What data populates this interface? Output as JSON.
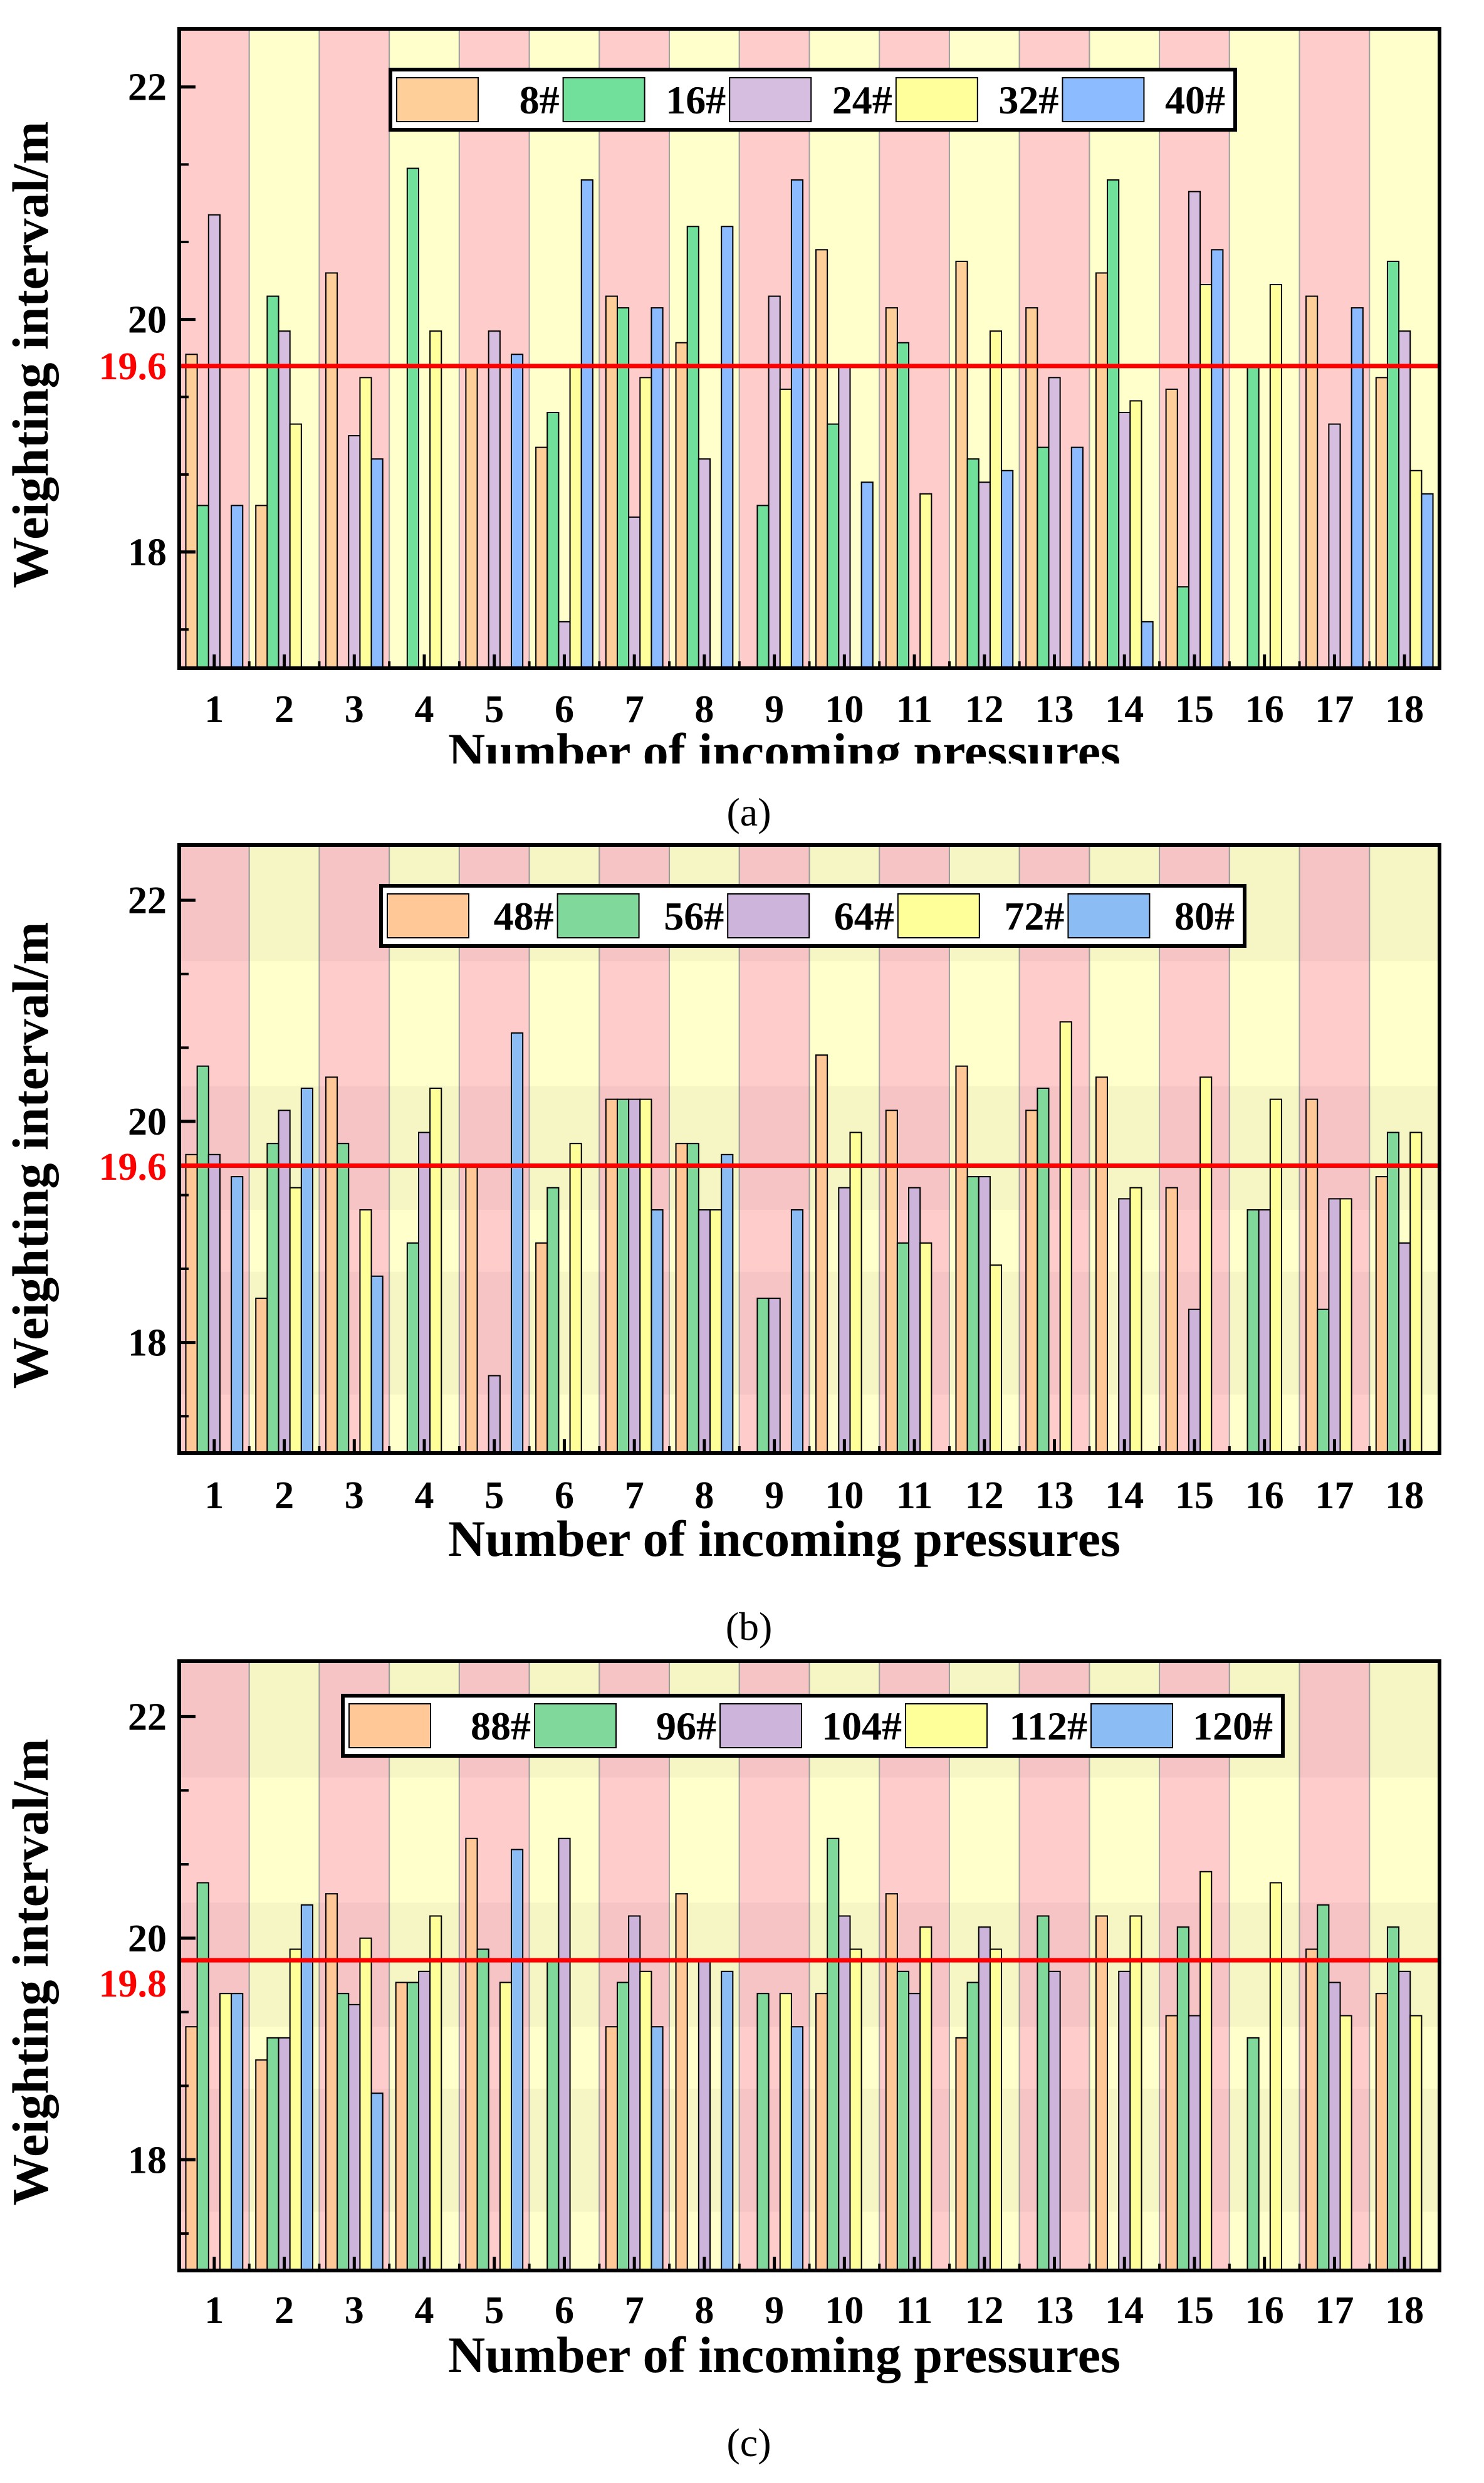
{
  "chart_data": [
    {
      "panel_label": "(a)",
      "type": "bar",
      "xlabel": "Number of incoming pressures",
      "ylabel": "Weighting interval/m",
      "categories": [
        "1",
        "2",
        "3",
        "4",
        "5",
        "6",
        "7",
        "8",
        "9",
        "10",
        "11",
        "12",
        "13",
        "14",
        "15",
        "16",
        "17",
        "18"
      ],
      "ylim": [
        17,
        22.5
      ],
      "yticks": [
        18,
        20,
        22
      ],
      "grid": false,
      "legend_position": "top-center",
      "reference_line": {
        "value": 19.6,
        "label": "19.6",
        "color": "#ff0000"
      },
      "background_colors": [
        "#ffcccc",
        "#ffffcc"
      ],
      "series": [
        {
          "name": "8#",
          "color": "#ffcf99",
          "values": [
            19.7,
            18.4,
            20.4,
            null,
            19.6,
            18.9,
            20.2,
            19.8,
            null,
            20.6,
            20.1,
            20.5,
            20.1,
            20.4,
            19.4,
            null,
            20.2,
            19.5
          ]
        },
        {
          "name": "16#",
          "color": "#70e09a",
          "values": [
            18.4,
            20.2,
            null,
            21.3,
            null,
            19.2,
            20.1,
            20.8,
            18.4,
            19.1,
            19.8,
            18.8,
            18.9,
            21.2,
            17.7,
            19.6,
            null,
            20.5
          ]
        },
        {
          "name": "24#",
          "color": "#d6bee0",
          "values": [
            20.9,
            19.9,
            19.0,
            null,
            19.9,
            17.4,
            18.3,
            18.8,
            20.2,
            19.6,
            null,
            18.6,
            19.5,
            19.2,
            21.1,
            null,
            19.1,
            19.9
          ]
        },
        {
          "name": "32#",
          "color": "#ffff9c",
          "values": [
            null,
            19.1,
            19.5,
            19.9,
            null,
            19.6,
            19.5,
            null,
            19.4,
            null,
            18.5,
            19.9,
            null,
            19.3,
            20.3,
            20.3,
            null,
            18.7
          ]
        },
        {
          "name": "40#",
          "color": "#8cbcff",
          "values": [
            18.4,
            null,
            18.8,
            null,
            19.7,
            21.2,
            20.1,
            20.8,
            21.2,
            18.6,
            null,
            18.7,
            18.9,
            17.4,
            20.6,
            null,
            20.1,
            18.5
          ]
        }
      ]
    },
    {
      "panel_label": "(b)",
      "type": "bar",
      "xlabel": "Number of incoming pressures",
      "ylabel": "Weighting interval/m",
      "categories": [
        "1",
        "2",
        "3",
        "4",
        "5",
        "6",
        "7",
        "8",
        "9",
        "10",
        "11",
        "12",
        "13",
        "14",
        "15",
        "16",
        "17",
        "18"
      ],
      "ylim": [
        17,
        22.5
      ],
      "yticks": [
        18,
        20,
        22
      ],
      "grid": false,
      "legend_position": "top-center",
      "reference_line": {
        "value": 19.6,
        "label": "19.6",
        "color": "#ff0000"
      },
      "background_colors": [
        "#ffcccc",
        "#ffffcc"
      ],
      "series": [
        {
          "name": "48#",
          "color": "#ffc896",
          "values": [
            19.7,
            18.4,
            20.4,
            null,
            19.6,
            18.9,
            20.2,
            19.8,
            null,
            20.6,
            20.1,
            20.5,
            20.1,
            20.4,
            19.4,
            null,
            20.2,
            19.5
          ]
        },
        {
          "name": "56#",
          "color": "#80d89a",
          "values": [
            20.5,
            19.8,
            19.8,
            18.9,
            null,
            19.4,
            20.2,
            19.8,
            18.4,
            null,
            18.9,
            19.5,
            20.3,
            null,
            null,
            19.2,
            18.3,
            19.9
          ]
        },
        {
          "name": "64#",
          "color": "#ccb4da",
          "values": [
            19.7,
            20.1,
            null,
            19.9,
            17.7,
            null,
            20.2,
            19.2,
            18.4,
            19.4,
            19.4,
            19.5,
            null,
            19.3,
            18.3,
            19.2,
            19.3,
            18.9
          ]
        },
        {
          "name": "72#",
          "color": "#ffff99",
          "values": [
            null,
            19.4,
            19.2,
            20.3,
            null,
            19.8,
            20.2,
            19.2,
            null,
            19.9,
            18.9,
            18.7,
            20.9,
            19.4,
            20.4,
            20.2,
            19.3,
            19.9
          ]
        },
        {
          "name": "80#",
          "color": "#8cbcf4",
          "values": [
            19.5,
            20.3,
            18.6,
            null,
            20.8,
            null,
            19.2,
            19.7,
            19.2,
            null,
            null,
            null,
            null,
            null,
            null,
            null,
            null,
            null
          ]
        }
      ]
    },
    {
      "panel_label": "(c)",
      "type": "bar",
      "xlabel": "Number of incoming pressures",
      "ylabel": "Weighting interval/m",
      "categories": [
        "1",
        "2",
        "3",
        "4",
        "5",
        "6",
        "7",
        "8",
        "9",
        "10",
        "11",
        "12",
        "13",
        "14",
        "15",
        "16",
        "17",
        "18"
      ],
      "ylim": [
        17,
        22.5
      ],
      "yticks": [
        18,
        20,
        22
      ],
      "grid": false,
      "legend_position": "top-center",
      "reference_line": {
        "value": 19.8,
        "label": "19.8",
        "color": "#ff0000"
      },
      "background_colors": [
        "#ffcccc",
        "#ffffcc"
      ],
      "series": [
        {
          "name": "88#",
          "color": "#ffc896",
          "values": [
            19.2,
            18.9,
            20.4,
            19.6,
            20.9,
            null,
            19.2,
            20.4,
            null,
            19.5,
            20.4,
            19.1,
            null,
            20.2,
            19.3,
            null,
            19.9,
            19.5
          ]
        },
        {
          "name": "96#",
          "color": "#80d89a",
          "values": [
            20.5,
            19.1,
            19.5,
            19.6,
            19.9,
            19.8,
            19.6,
            null,
            19.5,
            20.9,
            19.7,
            19.6,
            20.2,
            null,
            20.1,
            19.1,
            20.3,
            20.1
          ]
        },
        {
          "name": "104#",
          "color": "#ccb4da",
          "values": [
            null,
            19.1,
            19.4,
            19.7,
            null,
            20.9,
            20.2,
            19.8,
            null,
            20.2,
            19.5,
            20.1,
            19.7,
            19.7,
            19.3,
            null,
            19.6,
            19.7
          ]
        },
        {
          "name": "112#",
          "color": "#ffff99",
          "values": [
            19.5,
            19.9,
            20.0,
            20.2,
            19.6,
            null,
            19.7,
            null,
            19.5,
            19.9,
            20.1,
            19.9,
            null,
            20.2,
            20.6,
            20.5,
            19.3,
            19.3
          ]
        },
        {
          "name": "120#",
          "color": "#8cbcf4",
          "values": [
            19.5,
            20.3,
            18.6,
            null,
            20.8,
            null,
            19.2,
            19.7,
            19.2,
            null,
            null,
            null,
            null,
            null,
            null,
            null,
            null,
            null
          ]
        }
      ]
    }
  ]
}
